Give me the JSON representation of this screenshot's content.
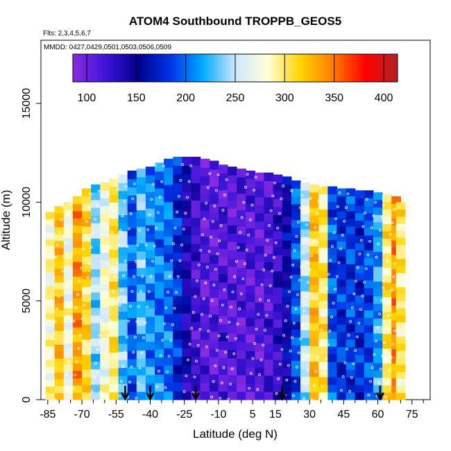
{
  "chart_data": {
    "type": "heatmap",
    "title": "ATOM4 Southbound TROPPB_GEOS5",
    "flights_note": "Flts: 2,3,4,5,6,7",
    "dates_note": "MMDD: 0427,0429,0501,0503,0506,0509",
    "xlabel": "Latitude (deg N)",
    "ylabel": "Altitude (m)",
    "xlim": [
      -88,
      83
    ],
    "ylim": [
      0,
      18200
    ],
    "x_ticks": [
      -85,
      -70,
      -55,
      -40,
      -25,
      -10,
      5,
      15,
      30,
      45,
      60,
      75
    ],
    "x_minor_ticks": [
      -80,
      -75,
      -65,
      -60,
      -50,
      -45,
      -35,
      -30,
      -20,
      -15,
      -5,
      0,
      10,
      20,
      25,
      35,
      40,
      50,
      55,
      65,
      70,
      80
    ],
    "y_ticks": [
      0,
      5000,
      10000,
      15000
    ],
    "colorbar": {
      "min": 86,
      "max": 414,
      "ticks": [
        100,
        150,
        200,
        250,
        300,
        350,
        400
      ],
      "colors": [
        "#8a2be2",
        "#3f14d8",
        "#00008b",
        "#0033e6",
        "#00aaff",
        "#cfe8ff",
        "#ffffd8",
        "#ffd400",
        "#ff7f00",
        "#ff0000",
        "#b22222"
      ]
    },
    "profile_columns": [
      {
        "lat": -84,
        "top": 9500,
        "value": 285
      },
      {
        "lat": -80,
        "top": 9800,
        "value": 320
      },
      {
        "lat": -76,
        "top": 10000,
        "value": 275
      },
      {
        "lat": -72,
        "top": 10300,
        "value": 335
      },
      {
        "lat": -68,
        "top": 10700,
        "value": 310
      },
      {
        "lat": -64,
        "top": 10900,
        "value": 240
      },
      {
        "lat": -60,
        "top": 11000,
        "value": 275
      },
      {
        "lat": -56,
        "top": 11200,
        "value": 300
      },
      {
        "lat": -52,
        "top": 11400,
        "value": 230
      },
      {
        "lat": -48,
        "top": 11600,
        "value": 195
      },
      {
        "lat": -44,
        "top": 11700,
        "value": 225
      },
      {
        "lat": -40,
        "top": 11800,
        "value": 210
      },
      {
        "lat": -36,
        "top": 12000,
        "value": 205
      },
      {
        "lat": -32,
        "top": 12200,
        "value": 200
      },
      {
        "lat": -28,
        "top": 12300,
        "value": 175
      },
      {
        "lat": -24,
        "top": 12300,
        "value": 140
      },
      {
        "lat": -20,
        "top": 12300,
        "value": 120
      },
      {
        "lat": -16,
        "top": 12200,
        "value": 110
      },
      {
        "lat": -12,
        "top": 12100,
        "value": 108
      },
      {
        "lat": -8,
        "top": 11900,
        "value": 112
      },
      {
        "lat": -4,
        "top": 11800,
        "value": 108
      },
      {
        "lat": 0,
        "top": 11700,
        "value": 110
      },
      {
        "lat": 4,
        "top": 11600,
        "value": 112
      },
      {
        "lat": 8,
        "top": 11500,
        "value": 110
      },
      {
        "lat": 12,
        "top": 11500,
        "value": 115
      },
      {
        "lat": 16,
        "top": 11400,
        "value": 125
      },
      {
        "lat": 20,
        "top": 11300,
        "value": 150
      },
      {
        "lat": 24,
        "top": 11100,
        "value": 190
      },
      {
        "lat": 28,
        "top": 11000,
        "value": 250
      },
      {
        "lat": 32,
        "top": 10900,
        "value": 320
      },
      {
        "lat": 36,
        "top": 10800,
        "value": 300
      },
      {
        "lat": 40,
        "top": 10800,
        "value": 190
      },
      {
        "lat": 44,
        "top": 10700,
        "value": 180
      },
      {
        "lat": 48,
        "top": 10700,
        "value": 185
      },
      {
        "lat": 52,
        "top": 10600,
        "value": 180
      },
      {
        "lat": 56,
        "top": 10600,
        "value": 190
      },
      {
        "lat": 60,
        "top": 10500,
        "value": 215
      },
      {
        "lat": 64,
        "top": 10400,
        "value": 300
      },
      {
        "lat": 68,
        "top": 10300,
        "value": 340
      },
      {
        "lat": 70,
        "top": 10000,
        "value": 300
      }
    ],
    "arrows_lat": [
      -51,
      -40,
      -20,
      18,
      61
    ]
  }
}
